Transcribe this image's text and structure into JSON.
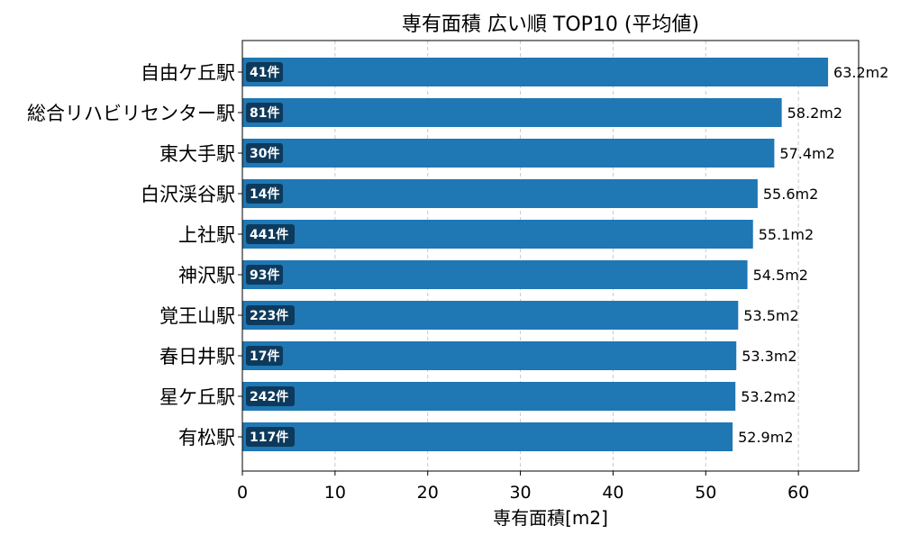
{
  "chart_data": {
    "type": "bar",
    "orientation": "horizontal",
    "title": "専有面積 広い順 TOP10 (平均値)",
    "xlabel": "専有面積[m2]",
    "ylabel": "",
    "xlim": [
      0,
      66.5
    ],
    "xticks": [
      0,
      10,
      20,
      30,
      40,
      50,
      60
    ],
    "grid": "x-dashed",
    "categories": [
      "自由ケ丘駅",
      "総合リハビリセンター駅",
      "東大手駅",
      "白沢渓谷駅",
      "上社駅",
      "神沢駅",
      "覚王山駅",
      "春日井駅",
      "星ケ丘駅",
      "有松駅"
    ],
    "values": [
      63.2,
      58.2,
      57.4,
      55.6,
      55.1,
      54.5,
      53.5,
      53.3,
      53.2,
      52.9
    ],
    "value_labels": [
      "63.2m2",
      "58.2m2",
      "57.4m2",
      "55.6m2",
      "55.1m2",
      "54.5m2",
      "53.5m2",
      "53.3m2",
      "53.2m2",
      "52.9m2"
    ],
    "count_labels": [
      "41件",
      "81件",
      "30件",
      "14件",
      "441件",
      "93件",
      "223件",
      "17件",
      "242件",
      "117件"
    ],
    "colors": {
      "bar": "#1f77b4",
      "badge": "#0d3a5c",
      "grid": "#c8c8c8",
      "axis": "#000000"
    }
  }
}
